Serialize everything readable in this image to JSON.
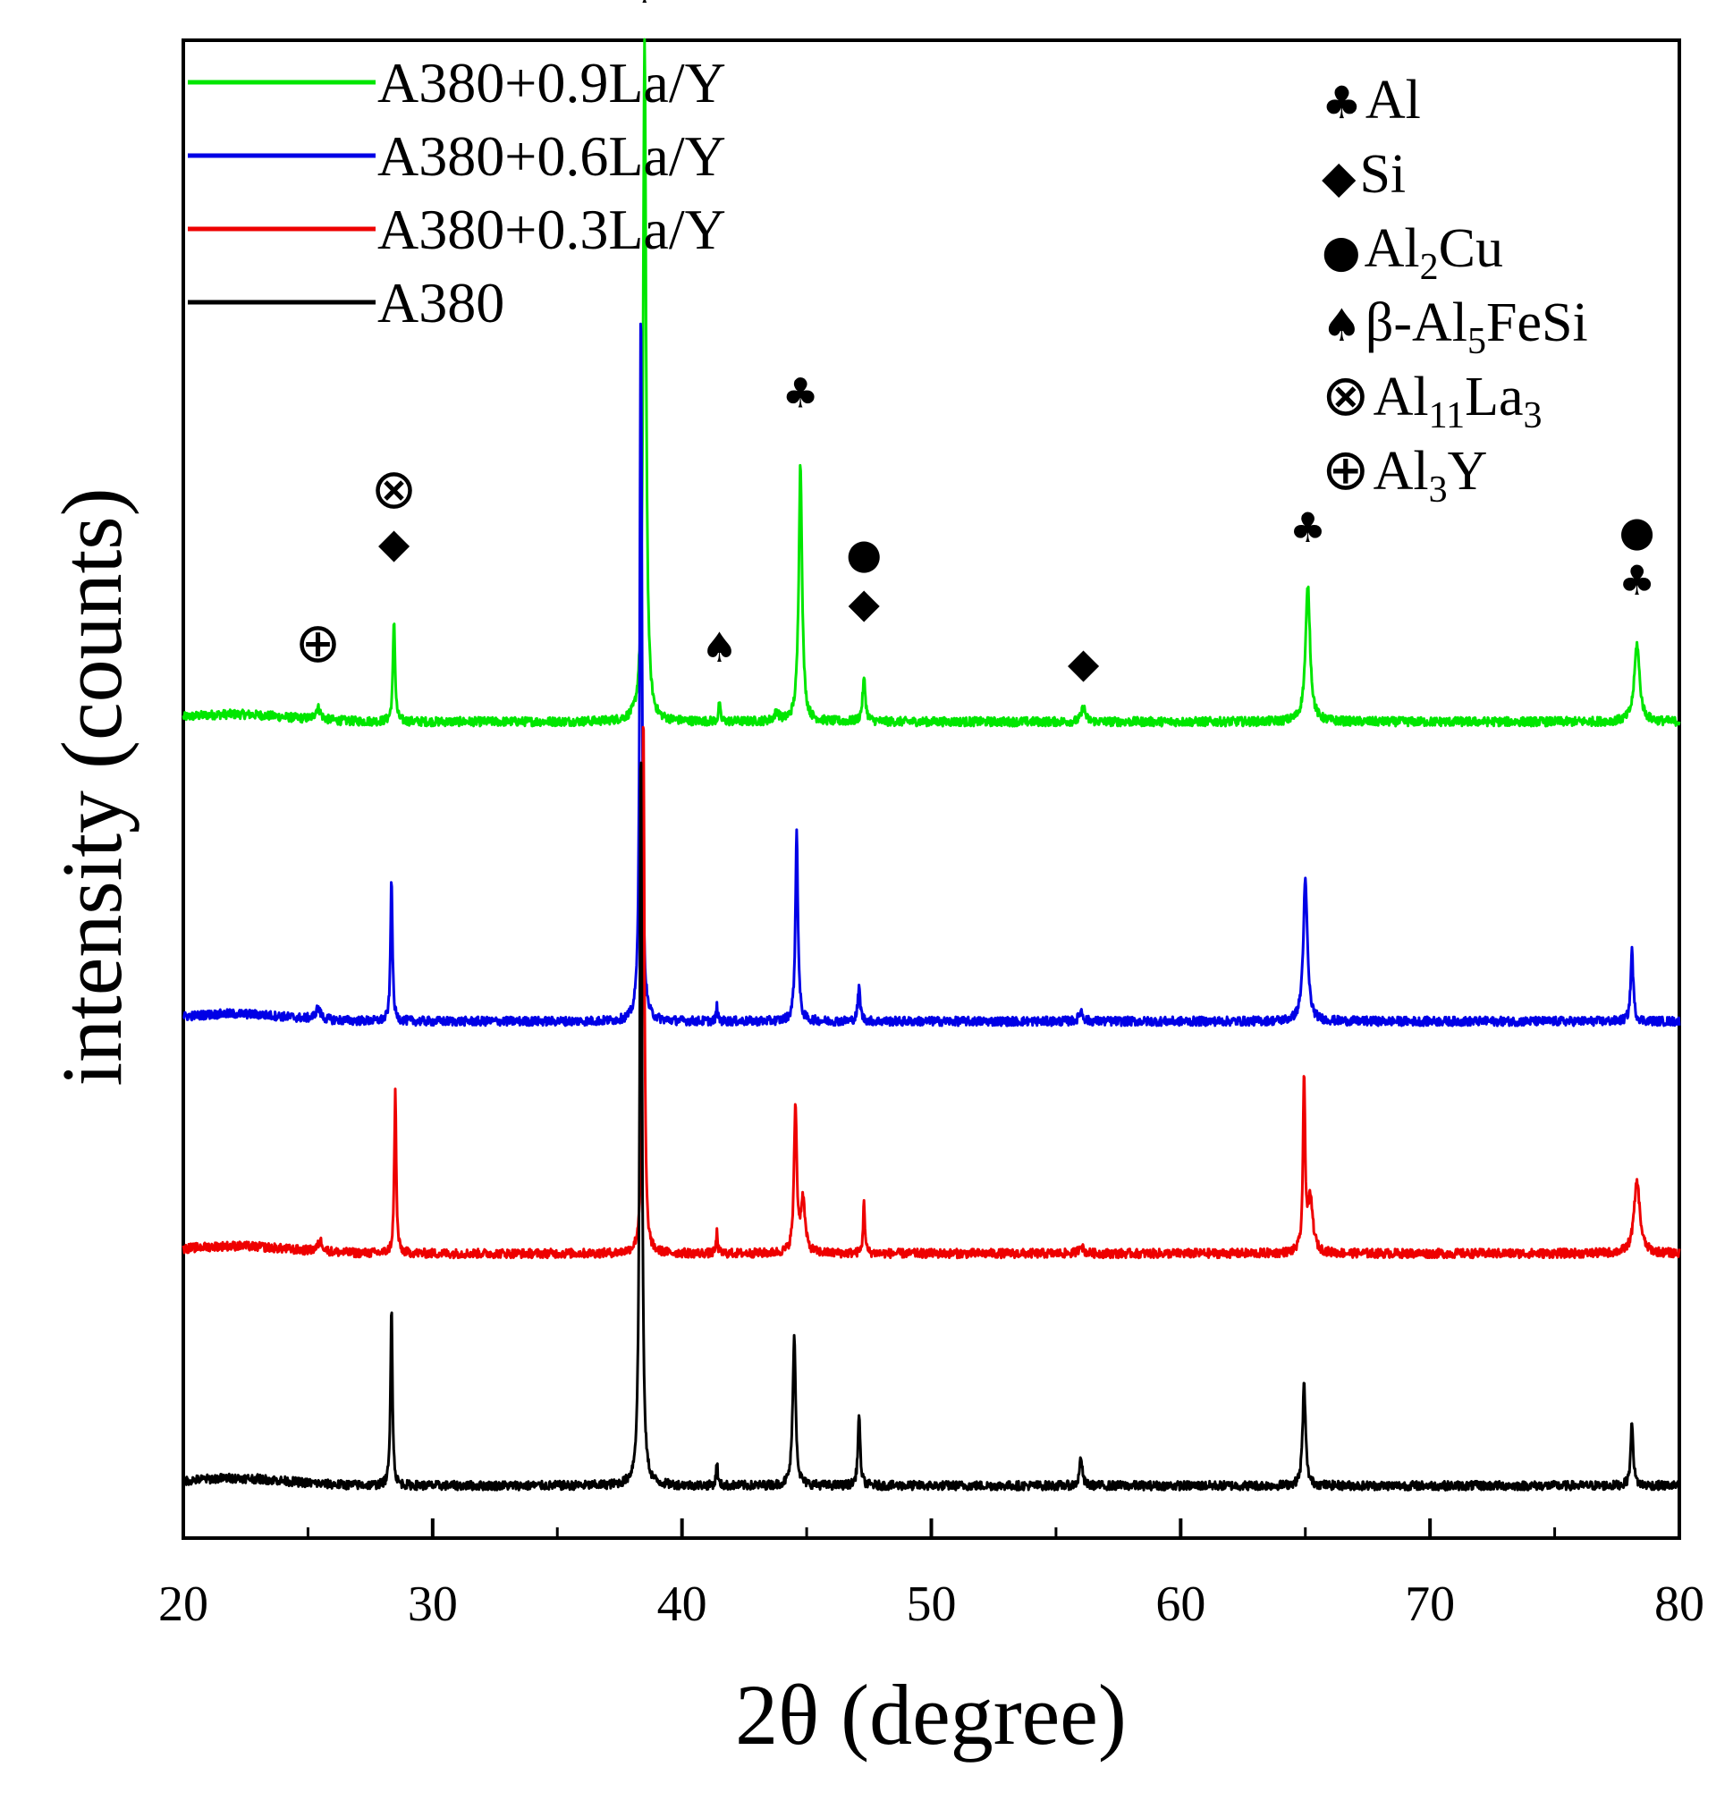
{
  "chart_data": {
    "type": "line",
    "title": "",
    "xlabel": "2θ (degree)",
    "ylabel": "intensity (counts)",
    "xlim": [
      20,
      80
    ],
    "ylim": [
      0,
      10
    ],
    "x_ticks": [
      20,
      30,
      40,
      50,
      60,
      70,
      80
    ],
    "x_tick_labels": [
      "20",
      "30",
      "40",
      "50",
      "60",
      "70",
      "80"
    ],
    "y_ticks_shown": false,
    "legend_position": "top-left",
    "series": [
      {
        "name": "A380+0.9La/Y",
        "color": "#00e600",
        "offset": 5.45,
        "peaks": [
          [
            25.4,
            0.08,
            0.25
          ],
          [
            28.45,
            0.68,
            0.1
          ],
          [
            38.5,
            4.55,
            0.14
          ],
          [
            41.5,
            0.12,
            0.08
          ],
          [
            43.8,
            0.06,
            0.2
          ],
          [
            44.75,
            1.72,
            0.16
          ],
          [
            47.3,
            0.28,
            0.14
          ],
          [
            56.1,
            0.1,
            0.18
          ],
          [
            65.1,
            0.9,
            0.22
          ],
          [
            78.3,
            0.52,
            0.25
          ]
        ]
      },
      {
        "name": "A380+0.6La/Y",
        "color": "#0000e6",
        "offset": 3.45,
        "peaks": [
          [
            25.4,
            0.07,
            0.25
          ],
          [
            28.35,
            0.97,
            0.09
          ],
          [
            38.35,
            4.82,
            0.1
          ],
          [
            41.4,
            0.1,
            0.07
          ],
          [
            44.6,
            1.27,
            0.12
          ],
          [
            47.1,
            0.22,
            0.12
          ],
          [
            56.0,
            0.07,
            0.18
          ],
          [
            65.0,
            0.93,
            0.2
          ],
          [
            78.1,
            0.48,
            0.12
          ]
        ]
      },
      {
        "name": "A380+0.3La/Y",
        "color": "#ee0000",
        "offset": 1.9,
        "peaks": [
          [
            25.5,
            0.07,
            0.25
          ],
          [
            28.5,
            1.08,
            0.09
          ],
          [
            38.45,
            3.63,
            0.1
          ],
          [
            41.4,
            0.14,
            0.07
          ],
          [
            44.55,
            0.98,
            0.13
          ],
          [
            44.85,
            0.35,
            0.2
          ],
          [
            47.3,
            0.36,
            0.08
          ],
          [
            56.0,
            0.06,
            0.18
          ],
          [
            64.95,
            1.15,
            0.1
          ],
          [
            65.2,
            0.35,
            0.25
          ],
          [
            78.3,
            0.48,
            0.28
          ]
        ]
      },
      {
        "name": "A380",
        "color": "#000000",
        "offset": 0.35,
        "peaks": [
          [
            28.35,
            1.22,
            0.09
          ],
          [
            38.35,
            4.97,
            0.11
          ],
          [
            41.4,
            0.16,
            0.07
          ],
          [
            44.5,
            1.0,
            0.14
          ],
          [
            47.1,
            0.47,
            0.11
          ],
          [
            56.0,
            0.2,
            0.12
          ],
          [
            64.95,
            0.68,
            0.14
          ],
          [
            78.1,
            0.43,
            0.12
          ]
        ]
      }
    ],
    "phase_legend": [
      {
        "symbol": "♣",
        "label": "Al",
        "sub": [],
        "tail": ""
      },
      {
        "symbol": "◆",
        "label": "Si",
        "sub": [],
        "tail": ""
      },
      {
        "symbol": "●",
        "label": "Al",
        "sub": [
          "2"
        ],
        "tail": "Cu"
      },
      {
        "symbol": "♠",
        "label": "β-Al",
        "sub": [
          "5"
        ],
        "tail": "FeSi"
      },
      {
        "symbol": "⊗",
        "label": "Al",
        "sub": [
          "11",
          "3"
        ],
        "tail": "La"
      },
      {
        "symbol": "⊕",
        "label": "Al",
        "sub": [
          "3"
        ],
        "tail": "Y"
      }
    ],
    "annotations": [
      {
        "symbols": [
          "♣"
        ],
        "x": 38.5,
        "y": 10.25
      },
      {
        "symbols": [
          "♣"
        ],
        "x": 44.75,
        "y": 7.55
      },
      {
        "symbols": [
          "◆",
          "⊗"
        ],
        "x": 28.45,
        "y": 6.55
      },
      {
        "symbols": [
          "⊕"
        ],
        "x": 25.4,
        "y": 5.85
      },
      {
        "symbols": [
          "♠"
        ],
        "x": 41.5,
        "y": 5.85
      },
      {
        "symbols": [
          "◆",
          "●"
        ],
        "x": 47.3,
        "y": 6.15
      },
      {
        "symbols": [
          "◆"
        ],
        "x": 56.1,
        "y": 5.75
      },
      {
        "symbols": [
          "♣"
        ],
        "x": 65.1,
        "y": 6.65
      },
      {
        "symbols": [
          "♣",
          "●"
        ],
        "x": 78.3,
        "y": 6.3
      }
    ]
  }
}
